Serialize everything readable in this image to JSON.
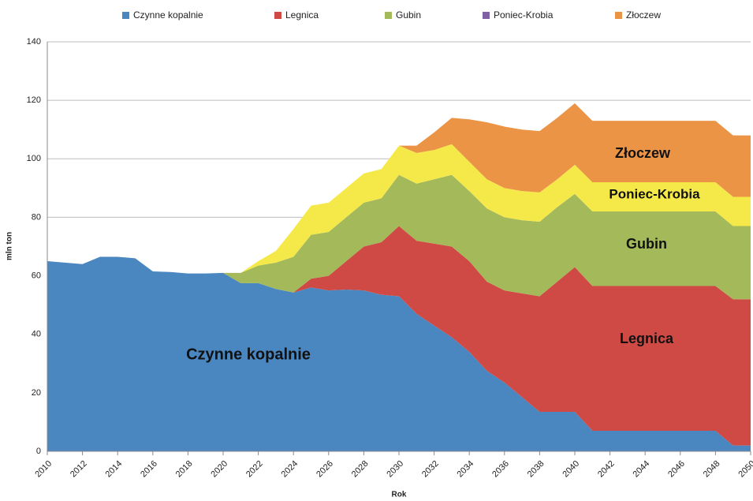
{
  "chart_data": {
    "type": "stacked-area",
    "x_label": "Rok",
    "y_label": "mln ton",
    "x": [
      2010,
      2011,
      2012,
      2013,
      2014,
      2015,
      2016,
      2017,
      2018,
      2019,
      2020,
      2021,
      2022,
      2023,
      2024,
      2025,
      2026,
      2027,
      2028,
      2029,
      2030,
      2031,
      2032,
      2033,
      2034,
      2035,
      2036,
      2037,
      2038,
      2039,
      2040,
      2041,
      2042,
      2043,
      2044,
      2045,
      2046,
      2047,
      2048,
      2049,
      2050
    ],
    "xlim": [
      2010,
      2050
    ],
    "xticks": [
      2010,
      2012,
      2014,
      2016,
      2018,
      2020,
      2022,
      2024,
      2026,
      2028,
      2030,
      2032,
      2034,
      2036,
      2038,
      2040,
      2042,
      2044,
      2046,
      2048,
      2050
    ],
    "ylim": [
      0,
      140
    ],
    "yticks": [
      0,
      20,
      40,
      60,
      80,
      100,
      120,
      140
    ],
    "grid": true,
    "series": [
      {
        "name": "Czynne kopalnie",
        "color": "#4a86c0",
        "values": [
          65,
          64.5,
          64,
          66.5,
          66.5,
          66,
          61.5,
          61.3,
          60.8,
          60.8,
          61,
          57.5,
          57.5,
          55.5,
          54.3,
          56,
          55,
          55.3,
          55,
          53.5,
          53,
          47,
          43,
          39,
          34,
          27.5,
          23.5,
          18.5,
          13.5,
          13.5,
          13.5,
          7,
          7,
          7,
          7,
          7,
          7,
          7,
          7,
          2,
          2
        ]
      },
      {
        "name": "Legnica",
        "color": "#d04a45",
        "values": [
          0,
          0,
          0,
          0,
          0,
          0,
          0,
          0,
          0,
          0,
          0,
          0,
          0,
          0,
          0,
          3,
          5,
          9.7,
          15,
          18,
          24,
          25,
          28,
          31,
          31,
          30.5,
          31.5,
          35.5,
          39.5,
          44.5,
          49.5,
          49.5,
          49.5,
          49.5,
          49.5,
          49.5,
          49.5,
          49.5,
          49.5,
          50,
          50
        ]
      },
      {
        "name": "Gubin",
        "color": "#a3b95a",
        "values": [
          0,
          0,
          0,
          0,
          0,
          0,
          0,
          0,
          0,
          0,
          0,
          3.5,
          6,
          9,
          12.2,
          15,
          15,
          15,
          15,
          15,
          17.5,
          19.5,
          22,
          24.5,
          24,
          25,
          25,
          25,
          25.5,
          25.5,
          25,
          25.5,
          25.5,
          25.5,
          25.5,
          25.5,
          25.5,
          25.5,
          25.5,
          25,
          25
        ]
      },
      {
        "name": "Poniec-Krobia",
        "color": "#f5e94a",
        "legend_color": "#7f5fa6",
        "values": [
          0,
          0,
          0,
          0,
          0,
          0,
          0,
          0,
          0,
          0,
          0,
          0,
          1.5,
          4,
          9.5,
          10,
          10,
          10,
          10,
          10,
          10,
          10.5,
          10,
          10.5,
          10,
          10,
          10,
          10,
          10,
          9.5,
          10,
          10,
          10,
          10,
          10,
          10,
          10,
          10,
          10,
          10,
          10
        ]
      },
      {
        "name": "Złoczew",
        "color": "#ec9446",
        "values": [
          0,
          0,
          0,
          0,
          0,
          0,
          0,
          0,
          0,
          0,
          0,
          0,
          0,
          0,
          0,
          0,
          0,
          0,
          0,
          0,
          0,
          2.5,
          6,
          9,
          14.5,
          19.5,
          21,
          21,
          21,
          21,
          21,
          21,
          21,
          21,
          21,
          21,
          21,
          21,
          21,
          21,
          21
        ]
      }
    ],
    "annotations": [
      "Czynne kopalnie",
      "Legnica",
      "Gubin",
      "Poniec-Krobia",
      "Złoczew"
    ]
  }
}
